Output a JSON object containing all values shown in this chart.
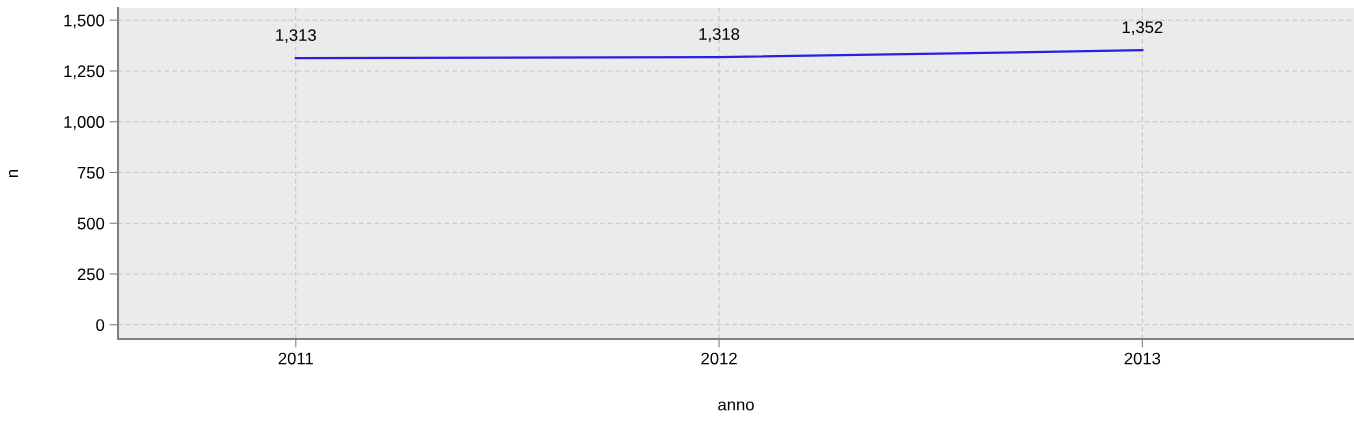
{
  "chart_data": {
    "type": "line",
    "xlabel": "anno",
    "ylabel": "n",
    "categories": [
      "2011",
      "2012",
      "2013"
    ],
    "series": [
      {
        "color": "#2a1fe0",
        "values": [
          1313,
          1318,
          1352
        ]
      }
    ],
    "value_labels": [
      "1,313",
      "1,318",
      "1,352"
    ],
    "ylim": [
      -70,
      1560
    ],
    "yticks": [
      {
        "value": 0,
        "label": "0"
      },
      {
        "value": 250,
        "label": "250"
      },
      {
        "value": 500,
        "label": "500"
      },
      {
        "value": 750,
        "label": "750"
      },
      {
        "value": 1000,
        "label": "1,000"
      },
      {
        "value": 1250,
        "label": "1,250"
      },
      {
        "value": 1500,
        "label": "1,500"
      }
    ],
    "grid": true,
    "marker": "none",
    "line_style": "solid",
    "legend": false
  }
}
